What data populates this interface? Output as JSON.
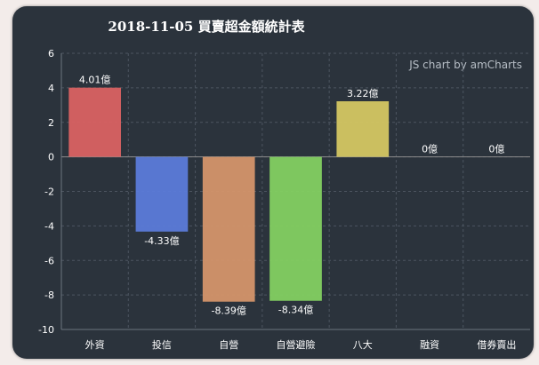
{
  "chart_data": {
    "type": "bar",
    "title": "2018-11-05 買賣超金額統計表",
    "credit": "JS chart by amCharts",
    "categories": [
      "外資",
      "投信",
      "自營",
      "自營避險",
      "八大",
      "融資",
      "借券賣出"
    ],
    "values": [
      4.01,
      -4.33,
      -8.39,
      -8.34,
      3.22,
      0,
      0
    ],
    "data_labels": [
      "4.01億",
      "-4.33億",
      "-8.39億",
      "-8.34億",
      "3.22億",
      "0億",
      "0億"
    ],
    "colors": [
      "#d96262",
      "#5b7bd9",
      "#d4956a",
      "#83d061",
      "#d4c762",
      "#cccccc",
      "#cccccc"
    ],
    "ylim": [
      -10,
      6
    ],
    "yticks": [
      -10,
      -8,
      -6,
      -4,
      -2,
      0,
      2,
      4,
      6
    ],
    "grid": true,
    "xlabel": "",
    "ylabel": ""
  }
}
